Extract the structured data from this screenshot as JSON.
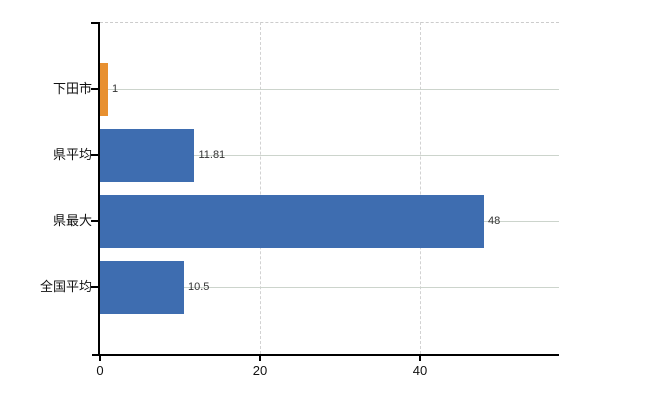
{
  "chart_data": {
    "type": "bar",
    "orientation": "horizontal",
    "title": "",
    "xlabel": "",
    "ylabel": "",
    "categories": [
      "下田市",
      "県平均",
      "県最大",
      "全国平均"
    ],
    "values": [
      1,
      11.81,
      48,
      10.5
    ],
    "value_labels": [
      "1",
      "11.81",
      "48",
      "10.5"
    ],
    "bar_colors": [
      "#e89030",
      "#3e6db0",
      "#3e6db0",
      "#3e6db0"
    ],
    "highlight_color": "#e89030",
    "series_color": "#3e6db0",
    "x_ticks": [
      "0",
      "20",
      "40"
    ],
    "x_tick_values": [
      0,
      20,
      40
    ],
    "xlim": [
      0,
      57.4
    ],
    "grid": "on",
    "legend": "off",
    "axis_color": "#000000",
    "gridline_color_h": "#ccd4cc",
    "gridline_color_v": "#d2d2d2",
    "value_label_color": "#333333",
    "tick_label_color": "#111111"
  }
}
